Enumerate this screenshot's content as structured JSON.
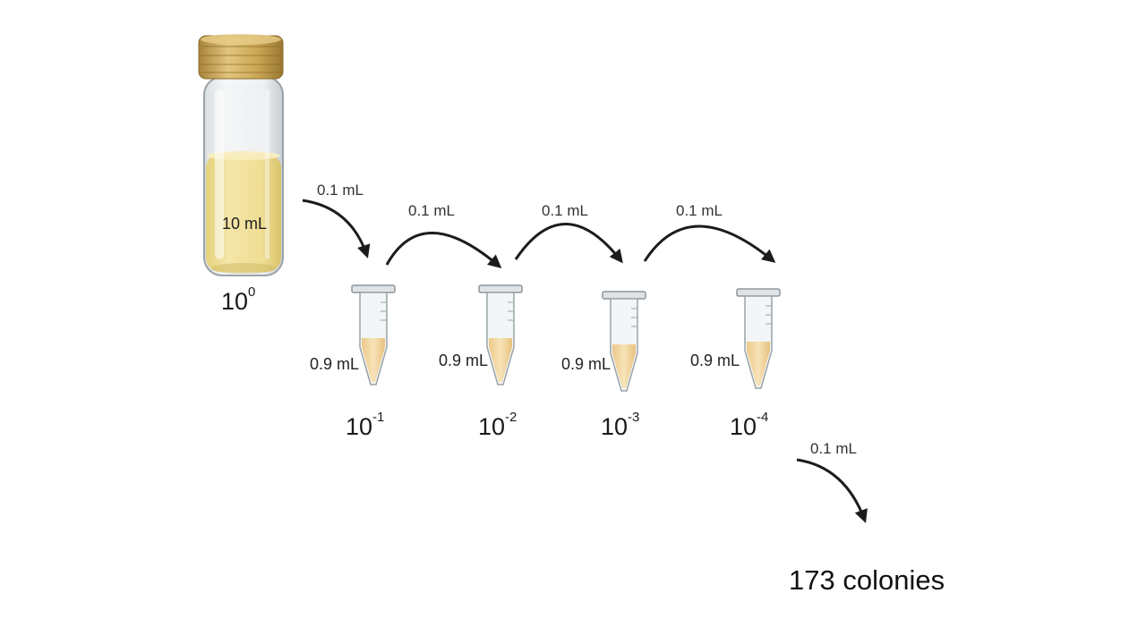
{
  "stock": {
    "volume": "10 mL",
    "dilution": {
      "base": "10",
      "exp": "0"
    }
  },
  "transfer_volume": "0.1 mL",
  "tubes": [
    {
      "volume": "0.9 mL",
      "dilution": {
        "base": "10",
        "exp": "-1"
      }
    },
    {
      "volume": "0.9 mL",
      "dilution": {
        "base": "10",
        "exp": "-2"
      }
    },
    {
      "volume": "0.9 mL",
      "dilution": {
        "base": "10",
        "exp": "-3"
      }
    },
    {
      "volume": "0.9 mL",
      "dilution": {
        "base": "10",
        "exp": "-4"
      }
    }
  ],
  "plating": {
    "volume": "0.1 mL",
    "result": "173 colonies"
  },
  "colors": {
    "cap": "#c9a654",
    "liquid": "#f2df9a",
    "tube_liquid": "#f1d39a",
    "arrow": "#1c1c1c"
  }
}
